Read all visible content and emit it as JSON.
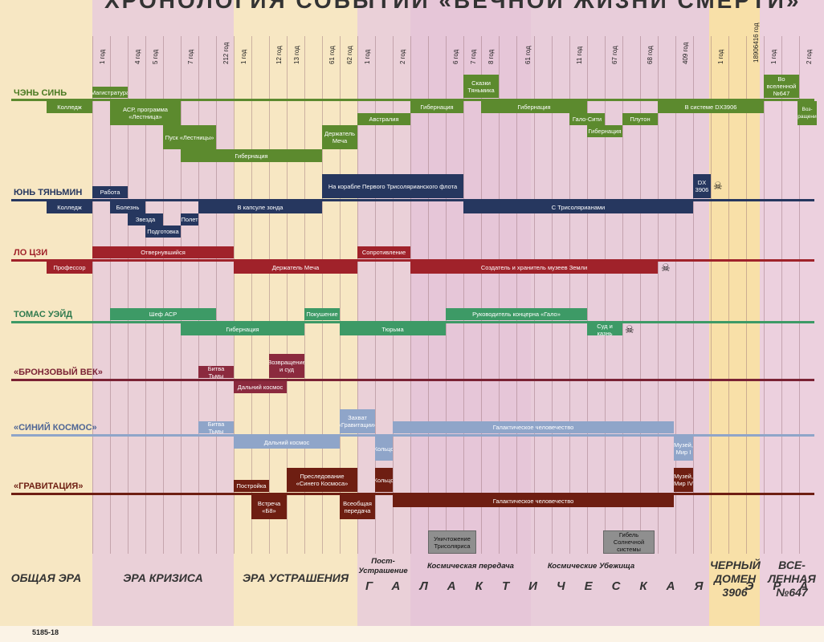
{
  "title": "ХРОНОЛОГИЯ СОБЫТИЙ «ВЕЧНОЙ ЖИЗНИ СМЕРТИ»",
  "colors": {
    "green": "#5c8a2e",
    "blue": "#26375f",
    "red": "#a0222a",
    "teal": "#3d9a66",
    "wine": "#7a2234",
    "sky": "#8fa5c9",
    "maroon": "#6e1e12"
  },
  "year_ticks": [
    "1 год",
    "4 год",
    "5 год",
    "7 год",
    "212 год",
    "1 год",
    "12 год",
    "13 год",
    "61 год",
    "62 год",
    "1 год",
    "2 год",
    "6 год",
    "7 год",
    "8 год",
    "61 год",
    "11 год",
    "67 год",
    "68 год",
    "409 год",
    "1 год",
    "18906416 год",
    "1 год",
    "2 год"
  ],
  "rows": {
    "cheng": {
      "name": "ЧЭНЬ СИНЬ",
      "events": [
        "Магистратура",
        "Колледж",
        "АСР, программа «Лестница»",
        "Пуск «Лестницы»",
        "Гибернация",
        "Держатель Меча",
        "Австралия",
        "Гибернация",
        "Сказки Тяньмика",
        "Гибернация",
        "Гало-Сити",
        "Гибернация",
        "Плутон",
        "В системе DX3906",
        "Во вселенной №647",
        "Воз-вращение"
      ]
    },
    "yun": {
      "name": "ЮНЬ ТЯНЬМИН",
      "events": [
        "Работа",
        "Колледж",
        "Болезнь",
        "Звезда",
        "Полет",
        "Подготовка",
        "В капсуле зонда",
        "На корабле Первого Трисолярианского флота",
        "С Трисолярианами",
        "DX 3906"
      ]
    },
    "luo": {
      "name": "ЛО ЦЗИ",
      "events": [
        "Отвернувшийся",
        "Профессор",
        "Держатель Меча",
        "Сопротивление",
        "Создатель и хранитель музеев Земли"
      ]
    },
    "wade": {
      "name": "ТОМАС УЭЙД",
      "events": [
        "Шеф АСР",
        "Гибернация",
        "Покушение",
        "Тюрьма",
        "Руководитель концерна «Гало»",
        "Суд и казнь"
      ]
    },
    "bronze": {
      "name": "«БРОНЗОВЫЙ ВЕК»",
      "events": [
        "Битва Тьмы",
        "Возвращение и суд",
        "Дальний космос"
      ]
    },
    "blue": {
      "name": "«СИНИЙ КОСМОС»",
      "events": [
        "Битва Тьмы",
        "Дальний космос",
        "Захват «Гравитации»",
        "Кольцо",
        "Галактическое человечество",
        "Музей, Мир I"
      ]
    },
    "grav": {
      "name": "«ГРАВИТАЦИЯ»",
      "events": [
        "Постройка",
        "Встреча «Б8»",
        "Преследование «Синего Космоса»",
        "Всеобщая передача",
        "Кольцо",
        "Галактическое человечество",
        "Музей, Мир IV"
      ]
    }
  },
  "gray_events": [
    "Уничтожение Трисоляриса",
    "Гибель Солнечной системы"
  ],
  "eras": {
    "common": "ОБЩАЯ ЭРА",
    "crisis": "ЭРА КРИЗИСА",
    "deterrence": "ЭРА УСТРАШЕНИЯ",
    "post": "Пост-Устрашение",
    "broadcast": "Космическая передача",
    "bunker": "Космические Убежища",
    "galactic": "ГАЛАКТИЧЕСКАЯ ЭРА",
    "domain": "ЧЕРНЫЙ ДОМЕН 3906",
    "universe": "ВСЕ-ЛЕННАЯ №647"
  },
  "code": "5185-18"
}
